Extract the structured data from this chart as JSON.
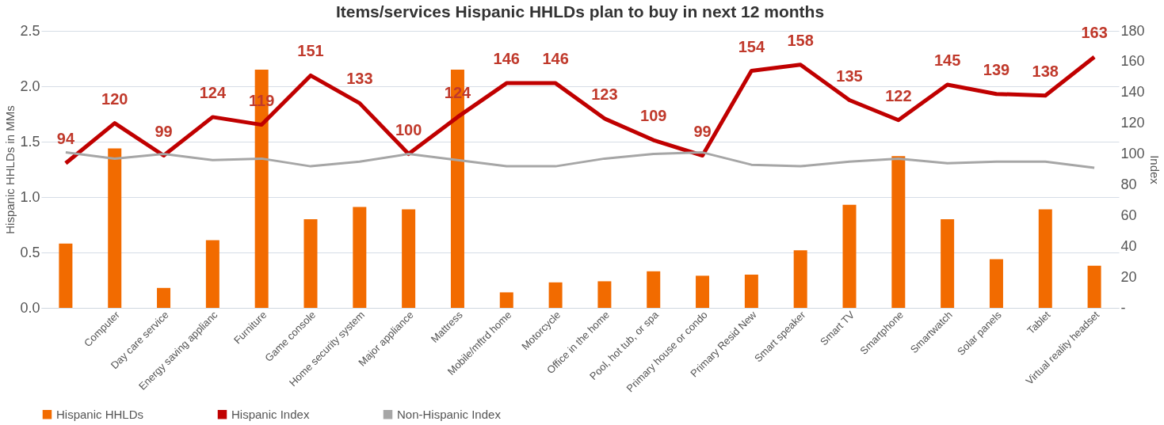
{
  "chart_data": {
    "type": "bar",
    "title": "Items/services Hispanic HHLDs plan to buy in next 12 months",
    "ylabel": "Hispanic HHLDs in MMs",
    "y2label": "Index",
    "categories": [
      null,
      "Computer",
      "Day care service",
      "Energy saving applianc",
      "Furniture",
      "Game console",
      "Home security system",
      "Major appliance",
      "Mattress",
      "Mobile/mftrd home",
      "Motorcycle",
      "Office in the home",
      "Pool, hot tub, or spa",
      "Primary house or condo",
      "Primary Resid New",
      "Smart speaker",
      "Smart TV",
      "Smartphone",
      "Smartwatch",
      "Solar panels",
      "Tablet",
      "Virtual reality headset"
    ],
    "series": [
      {
        "name": "Hispanic HHLDs",
        "color": "#f26b00",
        "values": [
          0.58,
          1.44,
          0.18,
          0.61,
          2.15,
          0.8,
          0.91,
          0.89,
          2.15,
          0.14,
          0.23,
          0.24,
          0.33,
          0.29,
          0.3,
          0.52,
          0.93,
          1.37,
          0.8,
          0.44,
          0.89,
          0.38
        ]
      },
      {
        "name": "Hispanic Index",
        "type": "line",
        "axis": "y2",
        "color": "#c00000",
        "data_labels": true,
        "values": [
          94,
          120,
          99,
          124,
          119,
          151,
          133,
          100,
          124,
          146,
          146,
          123,
          109,
          99,
          154,
          158,
          135,
          122,
          145,
          139,
          138,
          163
        ]
      },
      {
        "name": "Non-Hispanic Index",
        "type": "line",
        "axis": "y2",
        "color": "#a6a6a6",
        "values": [
          101,
          97,
          100,
          96,
          97,
          92,
          95,
          100,
          96,
          92,
          92,
          97,
          100,
          101,
          93,
          92,
          95,
          97,
          94,
          95,
          95,
          91
        ]
      }
    ],
    "ylim": [
      0,
      2.5
    ],
    "yticks": [
      {
        "value": 0,
        "label": "0.0"
      },
      0.5,
      {
        "value": 1,
        "label": "1.0"
      },
      1.5,
      {
        "value": 2,
        "label": "2.0"
      },
      2.5
    ],
    "y2lim": [
      0,
      180
    ],
    "y2ticks": [
      {
        "value": 0,
        "label": "-"
      },
      20,
      40,
      60,
      80,
      100,
      120,
      140,
      160,
      180
    ],
    "grid": "y",
    "legend": "bottom"
  }
}
